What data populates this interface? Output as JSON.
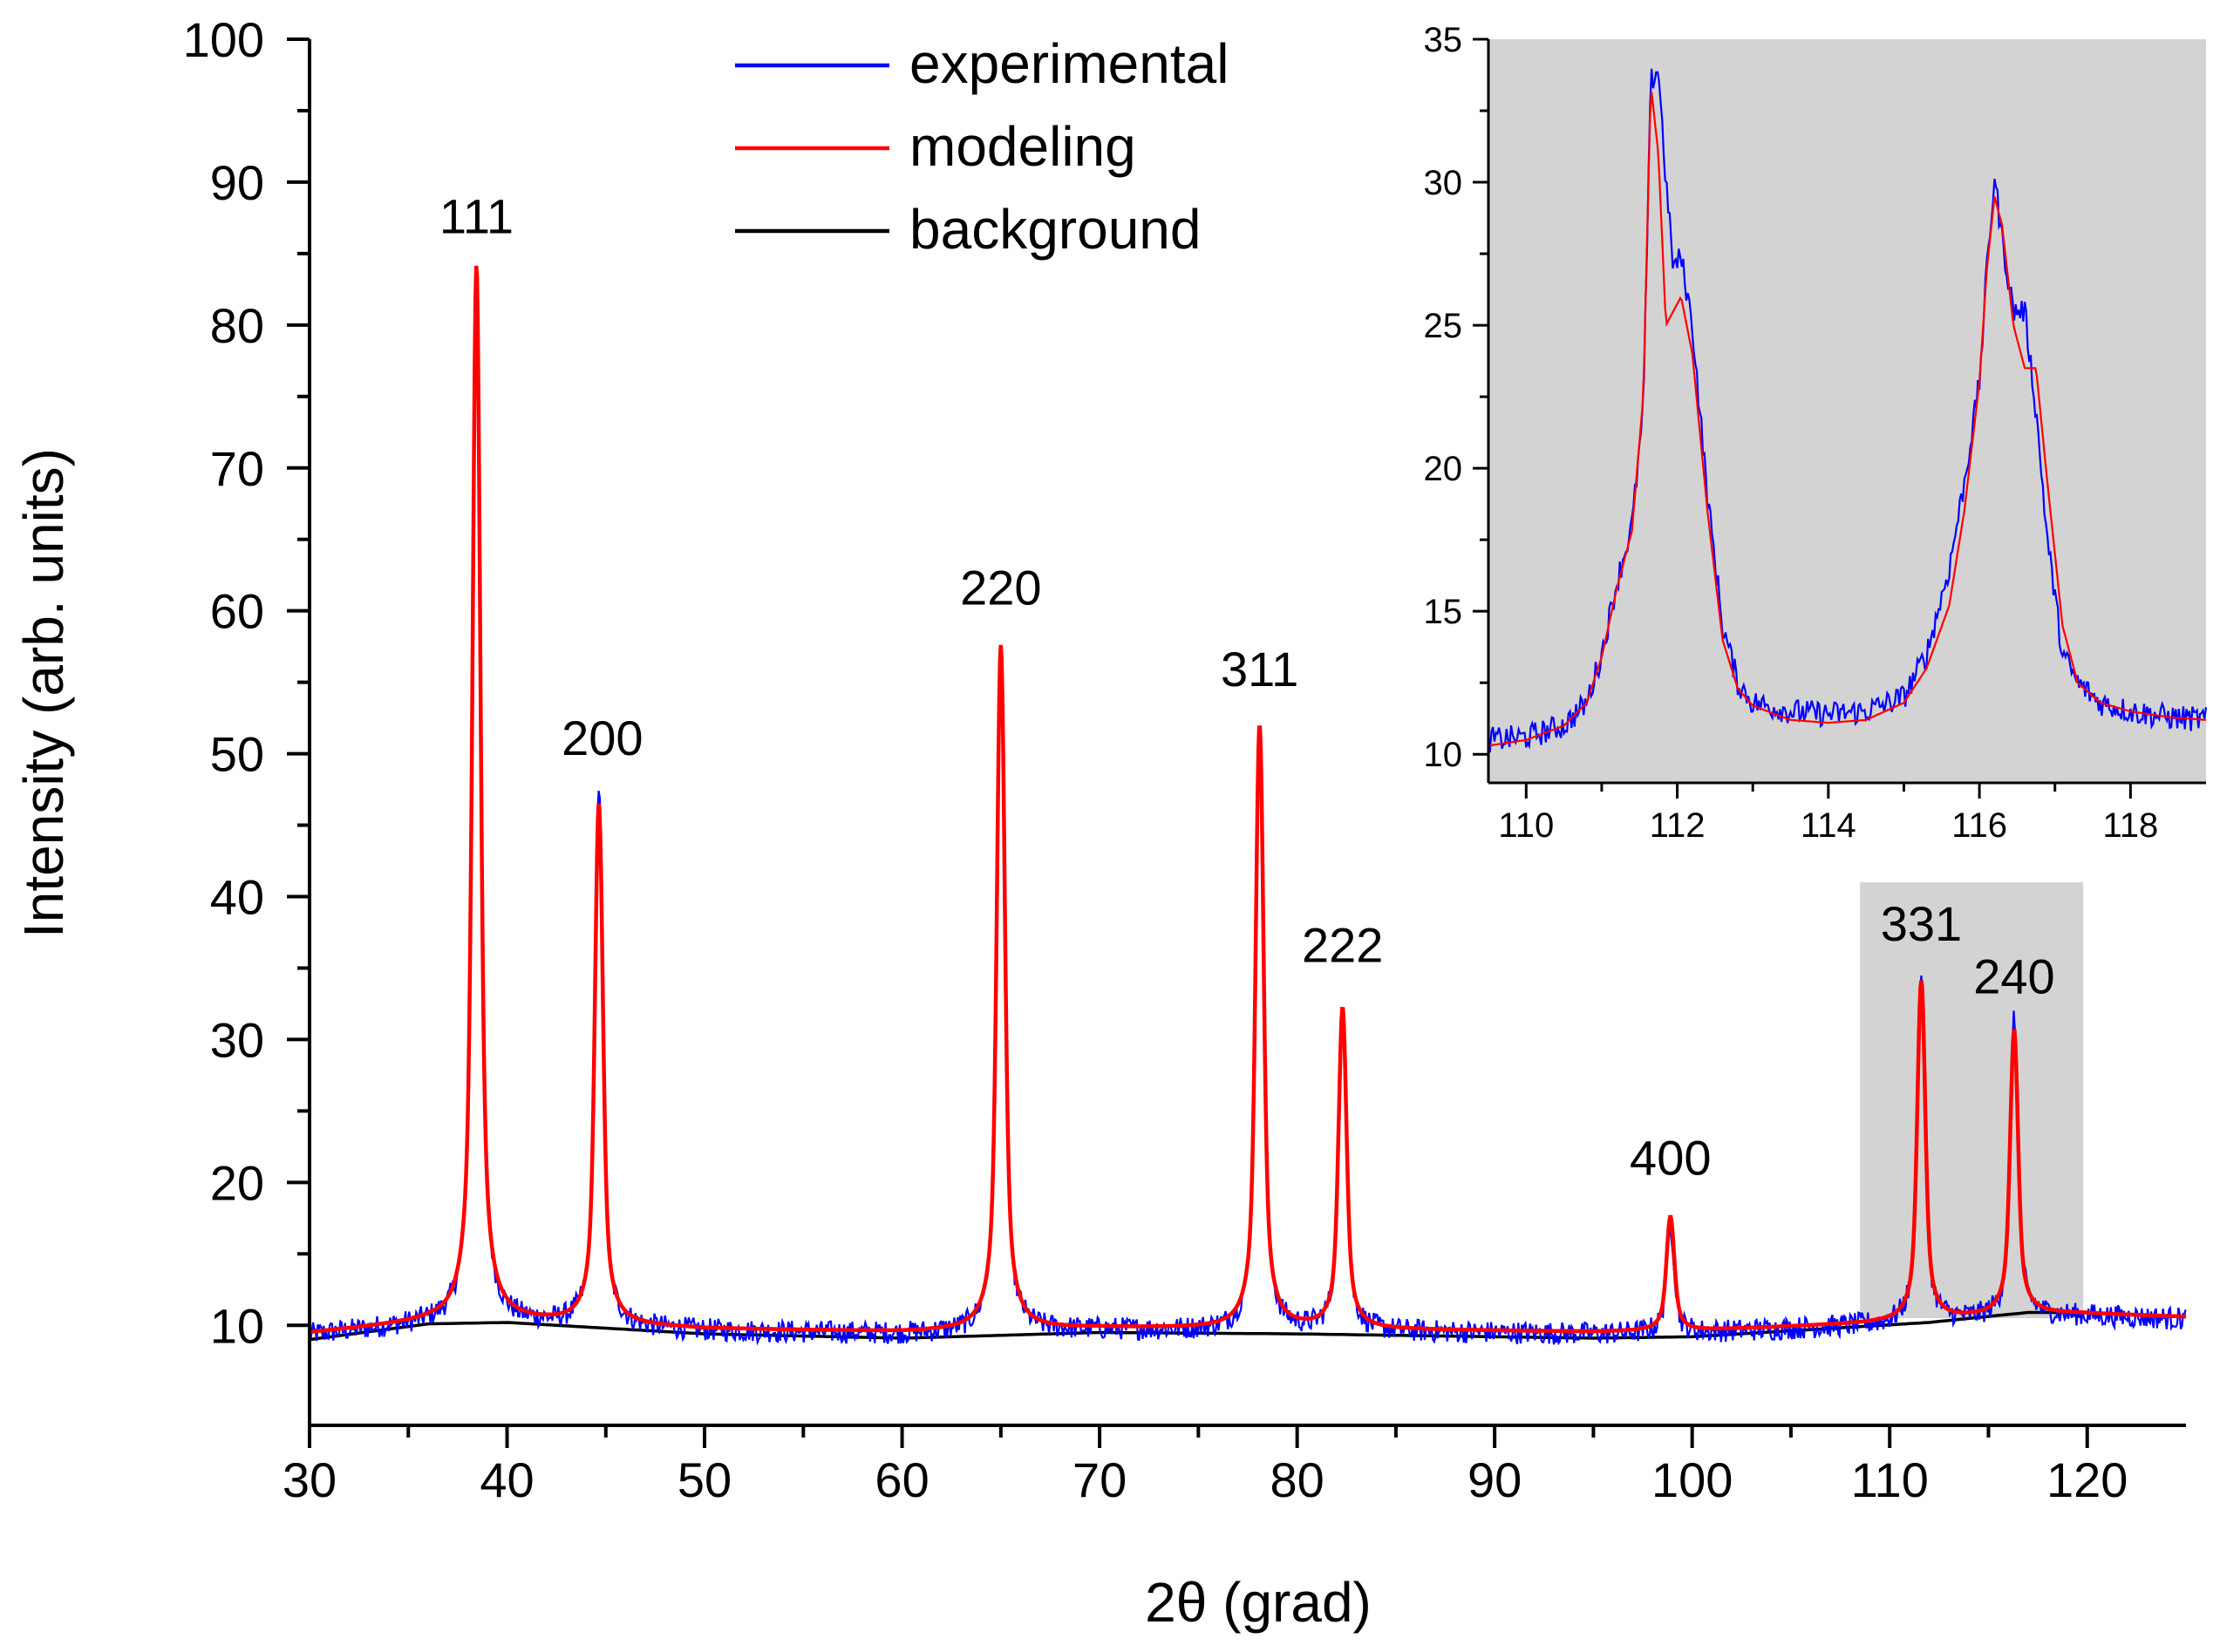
{
  "chart_data": [
    {
      "type": "line",
      "role": "main",
      "title": "",
      "xlabel": "2θ (grad)",
      "ylabel": "Intensity (arb. units)",
      "xlim": [
        30,
        125
      ],
      "ylim": [
        3,
        100
      ],
      "xticks": [
        30,
        40,
        50,
        60,
        70,
        80,
        90,
        100,
        110,
        120
      ],
      "yticks": [
        10,
        20,
        30,
        40,
        50,
        60,
        70,
        80,
        90,
        100
      ],
      "xtick_labels": [
        "30",
        "40",
        "50",
        "60",
        "70",
        "80",
        "90",
        "100",
        "110",
        "120"
      ],
      "ytick_labels": [
        "10",
        "20",
        "30",
        "40",
        "50",
        "60",
        "70",
        "80",
        "90",
        "100"
      ],
      "legend": {
        "position": "top-center",
        "entries": [
          {
            "label": "experimental",
            "color": "#0000ff"
          },
          {
            "label": "modeling",
            "color": "#ff0000"
          },
          {
            "label": "background",
            "color": "#000000"
          }
        ]
      },
      "highlight_region": {
        "x": [
          108.5,
          119.8
        ],
        "y": [
          10.5,
          41
        ],
        "color": "#d3d3d3"
      },
      "baseline": 9.6,
      "background": [
        [
          30,
          9.0
        ],
        [
          36,
          10.1
        ],
        [
          40,
          10.2
        ],
        [
          50,
          9.4
        ],
        [
          60,
          9.1
        ],
        [
          70,
          9.5
        ],
        [
          80,
          9.4
        ],
        [
          90,
          9.2
        ],
        [
          95,
          9.1
        ],
        [
          100,
          9.2
        ],
        [
          106,
          9.7
        ],
        [
          112,
          10.2
        ],
        [
          117,
          10.9
        ],
        [
          120,
          10.9
        ],
        [
          125,
          10.6
        ]
      ],
      "peaks": [
        {
          "label": "111",
          "x": 38.45,
          "experimental": 82.5,
          "modeling": 83.5
        },
        {
          "label": "200",
          "x": 44.65,
          "experimental": 47.0,
          "modeling": 46.0
        },
        {
          "label": "220",
          "x": 65.0,
          "experimental": 57.0,
          "modeling": 57.5
        },
        {
          "label": "311",
          "x": 78.1,
          "experimental": 51.0,
          "modeling": 51.8
        },
        {
          "label": "222",
          "x": 82.3,
          "experimental": 32.5,
          "modeling": 32.0
        },
        {
          "label": "400",
          "x": 98.9,
          "experimental": 17.0,
          "modeling": 17.6
        },
        {
          "label": "331",
          "x": 111.6,
          "experimental": 34.0,
          "modeling": 33.4
        },
        {
          "label": "240",
          "x": 116.3,
          "experimental": 30.3,
          "modeling": 29.5
        }
      ],
      "series": [
        {
          "name": "experimental",
          "color": "#0000ff"
        },
        {
          "name": "modeling",
          "color": "#ff0000"
        },
        {
          "name": "background",
          "color": "#000000"
        }
      ]
    },
    {
      "type": "line",
      "role": "inset",
      "title": "",
      "xlabel": "",
      "ylabel": "",
      "xlim": [
        109.5,
        119
      ],
      "ylim": [
        9,
        35
      ],
      "xticks": [
        110,
        112,
        114,
        116,
        118
      ],
      "yticks": [
        10,
        15,
        20,
        25,
        30,
        35
      ],
      "xtick_labels": [
        "110",
        "112",
        "114",
        "116",
        "118"
      ],
      "ytick_labels": [
        "10",
        "15",
        "20",
        "25",
        "30",
        "35"
      ],
      "background_color": "#d3d3d3",
      "series": [
        {
          "name": "experimental",
          "color": "#0000ff",
          "x": [
            109.5,
            110.0,
            110.5,
            110.8,
            111.0,
            111.2,
            111.4,
            111.55,
            111.65,
            111.75,
            111.85,
            111.95,
            112.05,
            112.2,
            112.4,
            112.6,
            112.8,
            113.0,
            113.5,
            114.0,
            114.5,
            115.0,
            115.3,
            115.6,
            115.8,
            116.0,
            116.1,
            116.2,
            116.3,
            116.45,
            116.6,
            116.75,
            116.9,
            117.1,
            117.3,
            117.6,
            118.0,
            118.5,
            119.0
          ],
          "y": [
            10.5,
            10.6,
            11.0,
            11.8,
            13.5,
            16.0,
            18.0,
            22.0,
            33.5,
            34.0,
            30.0,
            27.0,
            27.4,
            25.0,
            19.0,
            14.5,
            12.5,
            11.8,
            11.5,
            11.4,
            11.5,
            12.0,
            13.5,
            16.5,
            19.5,
            23.0,
            27.0,
            30.2,
            28.0,
            25.5,
            25.5,
            22.0,
            17.5,
            13.5,
            12.5,
            11.8,
            11.5,
            11.3,
            11.2
          ]
        },
        {
          "name": "modeling",
          "color": "#ff0000",
          "x": [
            109.5,
            110.0,
            110.5,
            110.8,
            111.0,
            111.2,
            111.4,
            111.55,
            111.65,
            111.75,
            111.85,
            111.95,
            112.05,
            112.2,
            112.4,
            112.6,
            112.8,
            113.0,
            113.5,
            114.0,
            114.5,
            115.0,
            115.3,
            115.6,
            115.8,
            116.0,
            116.1,
            116.2,
            116.3,
            116.45,
            116.6,
            116.75,
            116.9,
            117.1,
            117.3,
            117.6,
            118.0,
            118.5,
            119.0
          ],
          "y": [
            10.3,
            10.5,
            11.0,
            11.8,
            13.4,
            15.8,
            17.8,
            22.5,
            33.4,
            31.0,
            25.0,
            25.5,
            26.0,
            24.0,
            18.5,
            14.0,
            12.3,
            11.7,
            11.2,
            11.1,
            11.2,
            11.8,
            13.0,
            15.2,
            18.5,
            23.0,
            27.0,
            29.5,
            28.5,
            25.0,
            23.5,
            23.5,
            19.5,
            14.5,
            12.5,
            11.8,
            11.5,
            11.3,
            11.2
          ]
        }
      ]
    }
  ]
}
